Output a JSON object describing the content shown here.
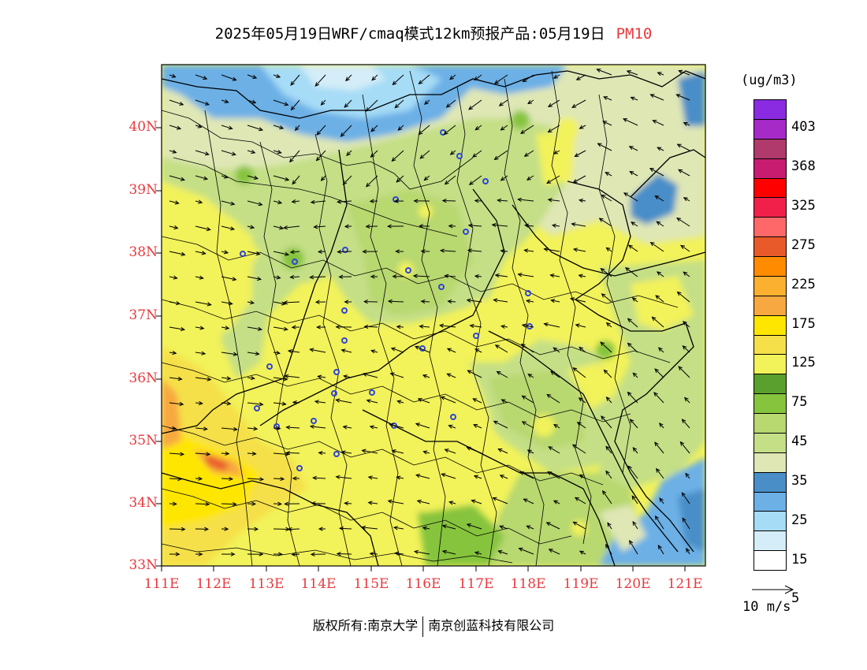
{
  "title": {
    "main": "2025年05月19日WRF/cmaq模式12km预报产品:05月19日",
    "variable": "PM10"
  },
  "axes": {
    "lat_labels": [
      "40N",
      "39N",
      "38N",
      "37N",
      "36N",
      "35N",
      "34N",
      "33N"
    ],
    "lon_labels": [
      "111E",
      "112E",
      "113E",
      "114E",
      "115E",
      "116E",
      "117E",
      "118E",
      "119E",
      "120E",
      "121E"
    ]
  },
  "legend": {
    "unit": "(ug/m3)",
    "tick_labels": [
      "403",
      "368",
      "325",
      "275",
      "225",
      "175",
      "125",
      "75",
      "45",
      "35",
      "25",
      "15",
      "5"
    ],
    "colors": [
      "#8a2be2",
      "#a52ac8",
      "#b03a6c",
      "#c81c70",
      "#ff0000",
      "#f0204a",
      "#ff6868",
      "#e85a2a",
      "#ff8c00",
      "#fcb030",
      "#f7a840",
      "#ffe600",
      "#f5e04a",
      "#f2f25a",
      "#5aa02e",
      "#86c43e",
      "#b8d870",
      "#c4df86",
      "#dfe7b5",
      "#4a8ec8",
      "#6cb0e6",
      "#a6dcf6",
      "#d4edf8",
      "#ffffff"
    ]
  },
  "reference_vector": {
    "label": "10 m/s"
  },
  "footer": {
    "left": "版权所有:南京大学",
    "right": "南京创蓝科技有限公司"
  }
}
